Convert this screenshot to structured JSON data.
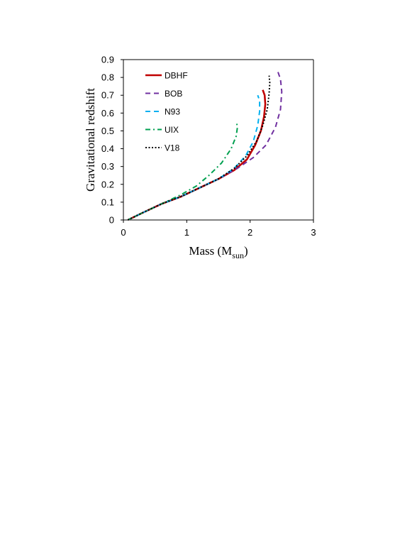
{
  "chart_data": {
    "type": "line",
    "title": "",
    "xlabel": "Mass (M",
    "xlabel_sub": "sun",
    "xlabel_close": ")",
    "ylabel": "Gravitational redshift",
    "xlim": [
      0,
      3
    ],
    "ylim": [
      0,
      0.9
    ],
    "xticks": [
      "0",
      "1",
      "2",
      "3"
    ],
    "yticks": [
      "0",
      "0.1",
      "0.2",
      "0.3",
      "0.4",
      "0.5",
      "0.6",
      "0.7",
      "0.8",
      "0.9"
    ],
    "grid": false,
    "legend_position": "top-left",
    "series": [
      {
        "name": "DBHF",
        "color": "#c00000",
        "dash": "solid",
        "points": [
          [
            0.07,
            0.0
          ],
          [
            0.3,
            0.04
          ],
          [
            0.6,
            0.09
          ],
          [
            0.9,
            0.13
          ],
          [
            1.2,
            0.18
          ],
          [
            1.5,
            0.23
          ],
          [
            1.75,
            0.28
          ],
          [
            1.95,
            0.34
          ],
          [
            2.08,
            0.42
          ],
          [
            2.17,
            0.5
          ],
          [
            2.22,
            0.58
          ],
          [
            2.24,
            0.65
          ],
          [
            2.23,
            0.7
          ],
          [
            2.2,
            0.73
          ]
        ]
      },
      {
        "name": "BOB",
        "color": "#7030a0",
        "dash": "dashed",
        "points": [
          [
            0.07,
            0.0
          ],
          [
            0.3,
            0.04
          ],
          [
            0.6,
            0.09
          ],
          [
            0.9,
            0.13
          ],
          [
            1.2,
            0.18
          ],
          [
            1.5,
            0.23
          ],
          [
            1.8,
            0.29
          ],
          [
            2.05,
            0.35
          ],
          [
            2.25,
            0.42
          ],
          [
            2.4,
            0.52
          ],
          [
            2.48,
            0.62
          ],
          [
            2.5,
            0.72
          ],
          [
            2.48,
            0.79
          ],
          [
            2.44,
            0.83
          ]
        ]
      },
      {
        "name": "N93",
        "color": "#00b0f0",
        "dash": "dashed",
        "points": [
          [
            0.07,
            0.0
          ],
          [
            0.3,
            0.04
          ],
          [
            0.6,
            0.09
          ],
          [
            0.9,
            0.13
          ],
          [
            1.2,
            0.18
          ],
          [
            1.5,
            0.23
          ],
          [
            1.75,
            0.29
          ],
          [
            1.93,
            0.36
          ],
          [
            2.05,
            0.44
          ],
          [
            2.12,
            0.53
          ],
          [
            2.15,
            0.61
          ],
          [
            2.15,
            0.67
          ],
          [
            2.12,
            0.7
          ]
        ]
      },
      {
        "name": "UIX",
        "color": "#00a050",
        "dash": "dashdot",
        "points": [
          [
            0.07,
            0.0
          ],
          [
            0.3,
            0.04
          ],
          [
            0.6,
            0.09
          ],
          [
            0.9,
            0.14
          ],
          [
            1.15,
            0.19
          ],
          [
            1.35,
            0.25
          ],
          [
            1.55,
            0.32
          ],
          [
            1.7,
            0.4
          ],
          [
            1.78,
            0.47
          ],
          [
            1.8,
            0.52
          ],
          [
            1.79,
            0.54
          ]
        ]
      },
      {
        "name": "V18",
        "color": "#000000",
        "dash": "dotted",
        "points": [
          [
            0.07,
            0.0
          ],
          [
            0.3,
            0.04
          ],
          [
            0.6,
            0.09
          ],
          [
            0.9,
            0.13
          ],
          [
            1.2,
            0.18
          ],
          [
            1.5,
            0.23
          ],
          [
            1.75,
            0.29
          ],
          [
            1.95,
            0.36
          ],
          [
            2.1,
            0.44
          ],
          [
            2.2,
            0.53
          ],
          [
            2.27,
            0.62
          ],
          [
            2.3,
            0.71
          ],
          [
            2.31,
            0.77
          ],
          [
            2.3,
            0.81
          ]
        ]
      }
    ]
  }
}
